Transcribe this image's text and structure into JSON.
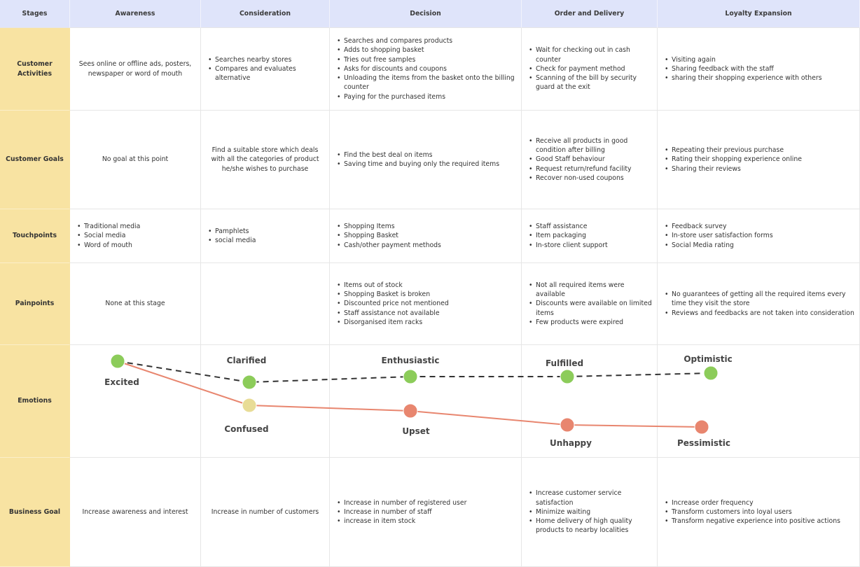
{
  "headers": [
    "Stages",
    "Awareness",
    "Consideration",
    "Decision",
    "Order and Delivery",
    "Loyalty Expansion"
  ],
  "rows": [
    {
      "stage": "Customer Activities",
      "cells": [
        {
          "type": "text",
          "text": "Sees online or offline ads, posters, newspaper or word of mouth"
        },
        {
          "type": "list",
          "items": [
            "Searches nearby stores",
            "Compares and evaluates alternative"
          ]
        },
        {
          "type": "list",
          "items": [
            "Searches and compares products",
            "Adds to shopping basket",
            "Tries out free samples",
            "Asks for discounts and coupons",
            "Unloading the items from the basket onto the billing counter",
            "Paying for the purchased items"
          ]
        },
        {
          "type": "list",
          "items": [
            "Wait for checking out in cash counter",
            "Check for payment method",
            "Scanning of the bill by security guard at the exit"
          ]
        },
        {
          "type": "list",
          "items": [
            "Visiting again",
            "Sharing feedback with the staff",
            "sharing their shopping experience with others"
          ]
        }
      ]
    },
    {
      "stage": "Customer Goals",
      "cells": [
        {
          "type": "text",
          "text": "No goal at this point"
        },
        {
          "type": "text",
          "text": "Find a suitable store which deals with all the categories of product he/she wishes to purchase"
        },
        {
          "type": "list",
          "items": [
            "Find the best deal on items",
            "Saving time and buying only the required items"
          ]
        },
        {
          "type": "list",
          "items": [
            "Receive all products in good condition after billing",
            "Good Staff behaviour",
            "Request return/refund facility",
            "Recover non-used coupons"
          ]
        },
        {
          "type": "list",
          "items": [
            "Repeating their previous purchase",
            "Rating their shopping experience online",
            "Sharing their reviews"
          ]
        }
      ]
    },
    {
      "stage": "Touchpoints",
      "cells": [
        {
          "type": "list",
          "items": [
            "Traditional media",
            "Social media",
            "Word of mouth"
          ]
        },
        {
          "type": "list",
          "items": [
            "Pamphlets",
            "social media"
          ]
        },
        {
          "type": "list",
          "items": [
            "Shopping Items",
            "Shopping Basket",
            "Cash/other payment methods"
          ]
        },
        {
          "type": "list",
          "items": [
            "Staff assistance",
            "Item packaging",
            "In-store client support"
          ]
        },
        {
          "type": "list",
          "items": [
            "Feedback survey",
            "In-store user satisfaction forms",
            "Social Media rating"
          ]
        }
      ]
    },
    {
      "stage": "Painpoints",
      "cells": [
        {
          "type": "text",
          "text": "None at this stage"
        },
        {
          "type": "text",
          "text": ""
        },
        {
          "type": "list",
          "items": [
            "Items out of stock",
            "Shopping Basket is broken",
            "Discounted price not mentioned",
            "Staff assistance not available",
            "Disorganised item racks"
          ]
        },
        {
          "type": "list",
          "items": [
            "Not all required items were available",
            "Discounts were available on limited items",
            "Few products were expired"
          ]
        },
        {
          "type": "list",
          "items": [
            "No guarantees of getting all the required items every time they visit the store",
            "Reviews and feedbacks are not taken into consideration"
          ]
        }
      ]
    }
  ],
  "emotions_row": {
    "stage": "Emotions"
  },
  "business_row": {
    "stage": "Business Goal",
    "cells": [
      {
        "type": "text",
        "text": "Increase awareness and interest"
      },
      {
        "type": "text",
        "text": "Increase in number of customers"
      },
      {
        "type": "list",
        "items": [
          "Increase in number of registered user",
          "Increase in number of staff",
          "increase in item stock"
        ]
      },
      {
        "type": "list",
        "items": [
          "Increase customer service satisfaction",
          "Minimize waiting",
          "Home delivery of high quality products to nearby localities"
        ]
      },
      {
        "type": "list",
        "items": [
          "Increase order frequency",
          "Transform customers into loyal users",
          "Transform negative experience into positive actions"
        ]
      }
    ]
  },
  "emotions": {
    "positive_path": {
      "color": "#e8866f",
      "points": [
        {
          "label": "Excited",
          "color": "#8ccc5a"
        },
        {
          "label": "Confused",
          "color": "#e8dc96"
        },
        {
          "label": "Upset",
          "color": "#e8866f"
        },
        {
          "label": "Unhappy",
          "color": "#e8866f"
        },
        {
          "label": "Pessimistic",
          "color": "#e8866f"
        }
      ]
    },
    "dashed_path": {
      "color": "#333333",
      "points": [
        {
          "label": "",
          "color": "#8ccc5a"
        },
        {
          "label": "Clarified",
          "color": "#8ccc5a"
        },
        {
          "label": "Enthusiastic",
          "color": "#8ccc5a"
        },
        {
          "label": "Fulfilled",
          "color": "#8ccc5a"
        },
        {
          "label": "Optimistic",
          "color": "#8ccc5a"
        }
      ]
    }
  }
}
